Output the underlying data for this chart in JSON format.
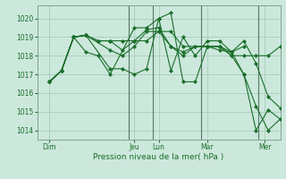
{
  "xlabel": "Pression niveau de la mer( hPa )",
  "bg_color": "#cce8dc",
  "grid_color": "#aaccbb",
  "line_color": "#1a6e2a",
  "sep_color": "#557766",
  "ylim": [
    1013.5,
    1020.7
  ],
  "yticks": [
    1014,
    1015,
    1016,
    1017,
    1018,
    1019,
    1020
  ],
  "xlim": [
    0,
    280
  ],
  "day_labels": [
    "Dim",
    "Jeu",
    "Lun",
    "Mar",
    "Mer"
  ],
  "day_positions": [
    14,
    112,
    140,
    196,
    262
  ],
  "day_separators": [
    105,
    133,
    189,
    255
  ],
  "lines": [
    {
      "x": [
        14,
        28,
        42,
        56,
        70,
        84,
        112,
        126,
        140,
        154,
        168,
        182,
        196,
        210,
        224,
        238,
        252,
        266,
        280
      ],
      "y": [
        1016.6,
        1017.2,
        1019.0,
        1018.2,
        1018.0,
        1017.0,
        1019.5,
        1019.5,
        1020.0,
        1020.3,
        1016.6,
        1016.6,
        1018.5,
        1018.5,
        1018.0,
        1017.0,
        1014.0,
        1015.1,
        1014.6
      ]
    },
    {
      "x": [
        14,
        28,
        42,
        56,
        70,
        84,
        98,
        112,
        126,
        140,
        154,
        168,
        182,
        196,
        210,
        224,
        238,
        252,
        266,
        280
      ],
      "y": [
        1016.6,
        1017.2,
        1019.0,
        1019.1,
        1018.8,
        1018.8,
        1018.8,
        1018.8,
        1019.4,
        1019.5,
        1018.5,
        1018.0,
        1018.5,
        1018.5,
        1018.5,
        1018.0,
        1018.0,
        1018.0,
        1018.0,
        1018.5
      ]
    },
    {
      "x": [
        14,
        28,
        42,
        56,
        70,
        84,
        98,
        112,
        126,
        140,
        154,
        168,
        182,
        196,
        210,
        224,
        238
      ],
      "y": [
        1016.6,
        1017.2,
        1019.0,
        1019.1,
        1018.8,
        1018.8,
        1018.3,
        1018.8,
        1018.8,
        1019.3,
        1018.5,
        1018.2,
        1018.5,
        1018.5,
        1018.3,
        1018.2,
        1018.5
      ]
    },
    {
      "x": [
        14,
        28,
        42,
        56,
        84,
        98,
        112,
        126,
        140,
        154,
        168,
        182,
        196,
        210,
        224,
        238,
        252,
        266,
        280
      ],
      "y": [
        1016.6,
        1017.2,
        1019.0,
        1019.1,
        1017.3,
        1017.3,
        1017.0,
        1017.3,
        1020.0,
        1017.2,
        1019.0,
        1018.0,
        1018.8,
        1018.8,
        1018.2,
        1017.0,
        1015.3,
        1014.0,
        1014.6
      ]
    },
    {
      "x": [
        14,
        28,
        42,
        56,
        84,
        98,
        112,
        126,
        140,
        154,
        168,
        196,
        210,
        224,
        238,
        252,
        266,
        280
      ],
      "y": [
        1016.6,
        1017.2,
        1019.0,
        1019.1,
        1018.3,
        1018.0,
        1018.5,
        1019.3,
        1019.3,
        1019.3,
        1018.5,
        1018.5,
        1018.5,
        1018.2,
        1018.8,
        1017.6,
        1015.8,
        1015.2
      ]
    }
  ]
}
